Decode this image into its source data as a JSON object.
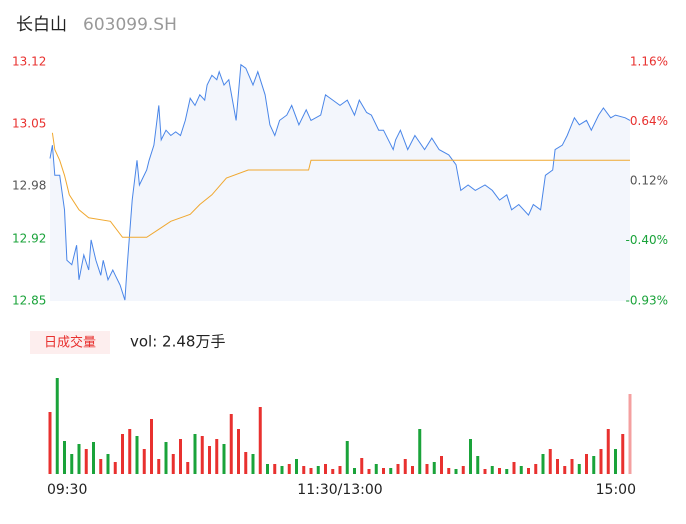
{
  "chart_data": [
    {
      "type": "line",
      "title": "长白山",
      "subtitle": "603099.SH",
      "xlim": [
        0,
        240
      ],
      "ylim": [
        12.85,
        13.12
      ],
      "yticks": [
        13.12,
        13.05,
        12.98,
        12.92,
        12.85
      ],
      "y2lim": [
        -0.93,
        1.16
      ],
      "y2ticks": [
        {
          "value": 1.16,
          "label": "1.16%"
        },
        {
          "value": 0.64,
          "label": "0.64%"
        },
        {
          "value": 0.12,
          "label": "0.12%"
        },
        {
          "value": -0.4,
          "label": "-0.40%"
        },
        {
          "value": -0.93,
          "label": "-0.93%"
        }
      ],
      "tick_colors": [
        "#e8312f",
        "#e8312f",
        "#555555",
        "#1aa33a",
        "#1aa33a"
      ],
      "area_color": "#f3f6fc",
      "series": [
        {
          "color": "#4a86e8",
          "x": [
            0,
            1,
            2,
            4,
            6,
            7,
            9,
            11,
            12,
            14,
            16,
            17,
            19,
            21,
            22,
            24,
            26,
            27,
            29,
            31,
            32,
            34,
            36,
            37,
            40,
            41,
            43,
            45,
            46,
            48,
            50,
            52,
            54,
            56,
            58,
            60,
            62,
            64,
            65,
            67,
            69,
            70,
            72,
            74,
            77,
            79,
            81,
            84,
            86,
            89,
            91,
            93,
            95,
            98,
            100,
            103,
            106,
            108,
            112,
            114,
            117,
            120,
            123,
            126,
            128,
            131,
            133,
            136,
            138,
            142,
            143,
            145,
            148,
            151,
            155,
            158,
            161,
            165,
            168,
            170,
            173,
            176,
            180,
            183,
            186,
            189,
            191,
            194,
            198,
            200,
            203,
            205,
            208,
            209,
            212,
            214,
            217,
            219,
            222,
            224,
            227,
            229,
            232,
            234,
            238,
            240
          ],
          "values": [
            13.011,
            13.026,
            12.992,
            12.992,
            12.953,
            12.896,
            12.891,
            12.913,
            12.874,
            12.902,
            12.885,
            12.919,
            12.896,
            12.879,
            12.896,
            12.874,
            12.885,
            12.879,
            12.868,
            12.851,
            12.891,
            12.964,
            13.009,
            12.981,
            12.998,
            13.009,
            13.026,
            13.071,
            13.032,
            13.043,
            13.037,
            13.041,
            13.037,
            13.054,
            13.079,
            13.071,
            13.083,
            13.077,
            13.094,
            13.105,
            13.1,
            13.109,
            13.094,
            13.1,
            13.054,
            13.117,
            13.113,
            13.094,
            13.109,
            13.083,
            13.049,
            13.037,
            13.054,
            13.06,
            13.071,
            13.049,
            13.066,
            13.054,
            13.06,
            13.083,
            13.077,
            13.071,
            13.077,
            13.06,
            13.077,
            13.063,
            13.06,
            13.043,
            13.043,
            13.021,
            13.032,
            13.043,
            13.021,
            13.037,
            13.021,
            13.034,
            13.021,
            13.015,
            13.004,
            12.975,
            12.981,
            12.975,
            12.981,
            12.975,
            12.964,
            12.97,
            12.953,
            12.959,
            12.947,
            12.959,
            12.953,
            12.992,
            12.998,
            13.021,
            13.026,
            13.037,
            13.057,
            13.049,
            13.054,
            13.043,
            13.06,
            13.068,
            13.057,
            13.06,
            13.057,
            13.054
          ]
        },
        {
          "color": "#f0a830",
          "x": [
            1,
            2,
            4,
            6,
            8,
            12,
            16,
            25,
            30,
            40,
            45,
            50,
            58,
            62,
            67,
            73,
            82,
            107,
            108,
            240
          ],
          "values": [
            13.04,
            13.021,
            13.009,
            12.992,
            12.97,
            12.953,
            12.944,
            12.94,
            12.922,
            12.922,
            12.931,
            12.94,
            12.948,
            12.959,
            12.97,
            12.989,
            12.998,
            12.998,
            13.009,
            13.009
          ]
        }
      ]
    },
    {
      "type": "bar",
      "label": "日成交量",
      "annotation": "vol: 2.48万手",
      "xlim": [
        0,
        240
      ],
      "ylim": [
        0,
        100
      ],
      "xticks": [
        {
          "value": 0,
          "label": "09:30"
        },
        {
          "value": 120,
          "label": "11:30/13:00"
        },
        {
          "value": 240,
          "label": "15:00"
        }
      ],
      "x": [
        0,
        3,
        6,
        9,
        12,
        15,
        18,
        21,
        24,
        27,
        30,
        33,
        36,
        39,
        42,
        45,
        48,
        51,
        54,
        57,
        60,
        63,
        66,
        69,
        72,
        75,
        78,
        81,
        84,
        87,
        90,
        93,
        96,
        99,
        102,
        105,
        108,
        111,
        114,
        117,
        120,
        123,
        126,
        129,
        132,
        135,
        138,
        141,
        144,
        147,
        150,
        153,
        156,
        159,
        162,
        165,
        168,
        171,
        174,
        177,
        180,
        183,
        186,
        189,
        192,
        195,
        198,
        201,
        204,
        207,
        210,
        213,
        216,
        219,
        222,
        225,
        228,
        231,
        234,
        237,
        240
      ],
      "values": [
        62,
        96,
        33,
        20,
        30,
        25,
        32,
        15,
        20,
        12,
        40,
        45,
        38,
        25,
        55,
        15,
        32,
        20,
        35,
        12,
        40,
        38,
        28,
        35,
        30,
        60,
        45,
        22,
        20,
        67,
        10,
        10,
        8,
        10,
        15,
        8,
        6,
        8,
        10,
        5,
        8,
        33,
        6,
        16,
        5,
        10,
        6,
        6,
        10,
        15,
        8,
        45,
        10,
        12,
        18,
        6,
        5,
        8,
        35,
        18,
        5,
        8,
        6,
        5,
        12,
        8,
        6,
        10,
        20,
        25,
        15,
        8,
        15,
        10,
        20,
        18,
        25,
        45,
        25,
        40,
        80
      ],
      "colors": [
        "#e8312f",
        "#1aa33a",
        "#1aa33a",
        "#1aa33a",
        "#1aa33a",
        "#e8312f",
        "#1aa33a",
        "#e8312f",
        "#1aa33a",
        "#e8312f",
        "#e8312f",
        "#e8312f",
        "#1aa33a",
        "#e8312f",
        "#e8312f",
        "#e8312f",
        "#1aa33a",
        "#e8312f",
        "#e8312f",
        "#e8312f",
        "#1aa33a",
        "#e8312f",
        "#e8312f",
        "#e8312f",
        "#1aa33a",
        "#e8312f",
        "#e8312f",
        "#e8312f",
        "#1aa33a",
        "#e8312f",
        "#1aa33a",
        "#e8312f",
        "#1aa33a",
        "#e8312f",
        "#1aa33a",
        "#e8312f",
        "#e8312f",
        "#1aa33a",
        "#e8312f",
        "#e8312f",
        "#e8312f",
        "#1aa33a",
        "#1aa33a",
        "#e8312f",
        "#e8312f",
        "#1aa33a",
        "#e8312f",
        "#1aa33a",
        "#e8312f",
        "#e8312f",
        "#e8312f",
        "#1aa33a",
        "#e8312f",
        "#1aa33a",
        "#e8312f",
        "#e8312f",
        "#1aa33a",
        "#e8312f",
        "#1aa33a",
        "#1aa33a",
        "#e8312f",
        "#1aa33a",
        "#e8312f",
        "#1aa33a",
        "#e8312f",
        "#1aa33a",
        "#e8312f",
        "#e8312f",
        "#1aa33a",
        "#e8312f",
        "#e8312f",
        "#e8312f",
        "#e8312f",
        "#1aa33a",
        "#e8312f",
        "#1aa33a",
        "#e8312f",
        "#e8312f",
        "#1aa33a",
        "#e8312f",
        "#f4a0a0"
      ]
    }
  ]
}
